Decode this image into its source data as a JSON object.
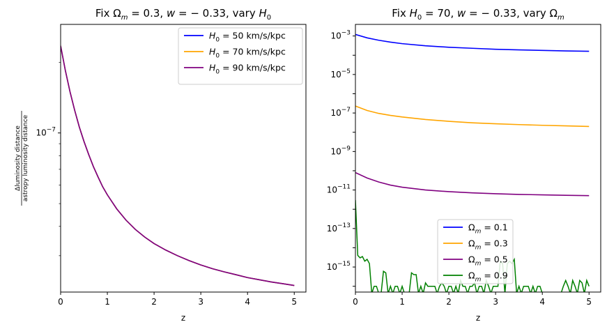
{
  "chart_data": [
    {
      "type": "line",
      "title_parts": {
        "a": "Fix ",
        "sym": "Ω",
        "sub": "m",
        "b": " = 0.3, ",
        "w": "w",
        "c": " = − 0.33, vary ",
        "h": "H",
        "hsub": "0"
      },
      "xlabel": "z",
      "ylabel": {
        "numerator": "Δluminosity distance",
        "denominator": "astropy luminosity distance"
      },
      "yscale": "log",
      "xlim": [
        0,
        5.25
      ],
      "ylim": [
        2.1e-08,
        2.9e-07
      ],
      "xticks": [
        0,
        1,
        2,
        3,
        4,
        5
      ],
      "xtick_labels": [
        "0",
        "1",
        "2",
        "3",
        "4",
        "5"
      ],
      "ytick_labels": [
        {
          "base": "10",
          "exp": "−7"
        }
      ],
      "legend_loc": "upper right",
      "legend": [
        {
          "prefix": "H",
          "sub": "0",
          "label": " = 50 km/s/kpc",
          "color": "#0000ff"
        },
        {
          "prefix": "H",
          "sub": "0",
          "label": " = 70 km/s/kpc",
          "color": "#ffa500"
        },
        {
          "prefix": "H",
          "sub": "0",
          "label": " = 90 km/s/kpc",
          "color": "#800080"
        }
      ],
      "x": [
        0,
        0.1,
        0.2,
        0.3,
        0.4,
        0.5,
        0.6,
        0.7,
        0.8,
        0.9,
        1.0,
        1.2,
        1.4,
        1.6,
        1.8,
        2.0,
        2.25,
        2.5,
        2.75,
        3.0,
        3.25,
        3.5,
        3.75,
        4.0,
        4.25,
        4.5,
        4.75,
        5.0
      ],
      "series": [
        {
          "color": "#0000ff",
          "values": [
            2.35e-07,
            1.85e-07,
            1.5e-07,
            1.25e-07,
            1.06e-07,
            9.2e-08,
            8.1e-08,
            7.2e-08,
            6.5e-08,
            5.9e-08,
            5.45e-08,
            4.75e-08,
            4.25e-08,
            3.88e-08,
            3.6e-08,
            3.38e-08,
            3.17e-08,
            3e-08,
            2.86e-08,
            2.74e-08,
            2.64e-08,
            2.56e-08,
            2.49e-08,
            2.42e-08,
            2.37e-08,
            2.32e-08,
            2.28e-08,
            2.24e-08
          ]
        },
        {
          "color": "#ffa500",
          "values": [
            2.35e-07,
            1.85e-07,
            1.5e-07,
            1.25e-07,
            1.06e-07,
            9.2e-08,
            8.1e-08,
            7.2e-08,
            6.5e-08,
            5.9e-08,
            5.45e-08,
            4.75e-08,
            4.25e-08,
            3.88e-08,
            3.6e-08,
            3.38e-08,
            3.17e-08,
            3e-08,
            2.86e-08,
            2.74e-08,
            2.64e-08,
            2.56e-08,
            2.49e-08,
            2.42e-08,
            2.37e-08,
            2.32e-08,
            2.28e-08,
            2.24e-08
          ]
        },
        {
          "color": "#800080",
          "values": [
            2.35e-07,
            1.85e-07,
            1.5e-07,
            1.25e-07,
            1.06e-07,
            9.2e-08,
            8.1e-08,
            7.2e-08,
            6.5e-08,
            5.9e-08,
            5.45e-08,
            4.75e-08,
            4.25e-08,
            3.88e-08,
            3.6e-08,
            3.38e-08,
            3.17e-08,
            3e-08,
            2.86e-08,
            2.74e-08,
            2.64e-08,
            2.56e-08,
            2.49e-08,
            2.42e-08,
            2.37e-08,
            2.32e-08,
            2.28e-08,
            2.24e-08
          ]
        }
      ]
    },
    {
      "type": "line",
      "title_parts": {
        "a": "Fix ",
        "h": "H",
        "hsub": "0",
        "b": " = 70, ",
        "w": "w",
        "c": " = − 0.33, vary ",
        "sym": "Ω",
        "sub": "m"
      },
      "xlabel": "z",
      "yscale": "log",
      "xlim": [
        0,
        5.25
      ],
      "ylim": [
        5e-17,
        0.004
      ],
      "xticks": [
        0,
        1,
        2,
        3,
        4,
        5
      ],
      "xtick_labels": [
        "0",
        "1",
        "2",
        "3",
        "4",
        "5"
      ],
      "yticks": [
        0.001,
        1e-05,
        1e-07,
        1e-09,
        1e-11,
        1e-13,
        1e-15
      ],
      "ytick_labels": [
        {
          "base": "10",
          "exp": "−3"
        },
        {
          "base": "10",
          "exp": "−5"
        },
        {
          "base": "10",
          "exp": "−7"
        },
        {
          "base": "10",
          "exp": "−9"
        },
        {
          "base": "10",
          "exp": "−11"
        },
        {
          "base": "10",
          "exp": "−13"
        },
        {
          "base": "10",
          "exp": "−15"
        }
      ],
      "legend_loc": "lower center",
      "legend": [
        {
          "prefix": "Ω",
          "sub": "m",
          "label": " = 0.1",
          "color": "#0000ff"
        },
        {
          "prefix": "Ω",
          "sub": "m",
          "label": " = 0.3",
          "color": "#ffa500"
        },
        {
          "prefix": "Ω",
          "sub": "m",
          "label": " = 0.5",
          "color": "#800080"
        },
        {
          "prefix": "Ω",
          "sub": "m",
          "label": " = 0.9",
          "color": "#008000"
        }
      ],
      "x": [
        0,
        0.25,
        0.5,
        0.75,
        1.0,
        1.5,
        2.0,
        2.5,
        3.0,
        3.5,
        4.0,
        4.5,
        5.0
      ],
      "series": [
        {
          "color": "#0000ff",
          "values": [
            0.0012,
            0.0008,
            0.0006,
            0.00048,
            0.0004,
            0.00031,
            0.00026,
            0.00023,
            0.000205,
            0.00019,
            0.000178,
            0.000168,
            0.00016
          ]
        },
        {
          "color": "#ffa500",
          "values": [
            2.3e-07,
            1.35e-07,
            9.5e-08,
            7.5e-08,
            6.2e-08,
            4.6e-08,
            3.7e-08,
            3.1e-08,
            2.75e-08,
            2.5e-08,
            2.3e-08,
            2.15e-08,
            2e-08
          ]
        },
        {
          "color": "#800080",
          "values": [
            8e-11,
            4.2e-11,
            2.6e-11,
            1.8e-11,
            1.4e-11,
            1e-11,
            8.2e-12,
            7.1e-12,
            6.4e-12,
            5.9e-12,
            5.6e-12,
            5.3e-12,
            5.1e-12
          ]
        }
      ],
      "noisy_series": {
        "color": "#008000",
        "x": [
          0,
          0.05,
          0.1,
          0.15,
          0.2,
          0.25,
          0.3,
          0.35,
          0.4,
          0.45,
          0.5,
          0.55,
          0.6,
          0.65,
          0.7,
          0.75,
          0.8,
          0.85,
          0.9,
          0.95,
          1.0,
          1.05,
          1.1,
          1.15,
          1.2,
          1.25,
          1.3,
          1.35,
          1.4,
          1.45,
          1.5,
          1.55,
          1.6,
          1.65,
          1.7,
          1.75,
          1.8,
          1.85,
          1.9,
          1.95,
          2.0,
          2.05,
          2.1,
          2.15,
          2.2,
          2.25,
          2.3,
          2.35,
          2.4,
          2.45,
          2.5,
          2.55,
          2.6,
          2.65,
          2.7,
          2.75,
          2.8,
          2.85,
          2.9,
          2.95,
          3.0,
          3.05,
          3.1,
          3.15,
          3.2,
          3.25,
          3.3,
          3.35,
          3.4,
          3.45,
          3.5,
          3.55,
          3.6,
          3.65,
          3.7,
          3.75,
          3.8,
          3.85,
          3.9,
          3.95,
          4.0,
          4.05,
          4.1,
          4.15,
          4.2,
          4.25,
          4.3,
          4.35,
          4.4,
          4.45,
          4.5,
          4.55,
          4.6,
          4.65,
          4.7,
          4.75,
          4.8,
          4.85,
          4.9,
          4.95,
          5.0
        ],
        "values": [
          3e-12,
          4e-15,
          3e-15,
          3.5e-15,
          2e-15,
          2.5e-15,
          1.5e-15,
          0,
          1e-16,
          1e-16,
          0,
          0,
          6e-16,
          5e-16,
          0,
          1e-16,
          0,
          1e-16,
          1e-16,
          0,
          1e-16,
          0,
          0,
          0,
          5e-16,
          4e-16,
          4e-16,
          0,
          1e-16,
          0,
          1.5e-16,
          1e-16,
          1e-16,
          1e-16,
          1e-16,
          0,
          1e-16,
          1.5e-16,
          1e-16,
          0,
          1e-16,
          1e-16,
          0,
          1e-16,
          0,
          2e-16,
          1e-16,
          1e-16,
          0,
          1e-16,
          1e-16,
          1.5e-16,
          0,
          1e-16,
          1e-16,
          0,
          2e-16,
          1e-16,
          0,
          1e-16,
          1e-16,
          1e-16,
          2e-15,
          1.5e-15,
          0,
          1.5e-15,
          2e-15,
          1.5e-15,
          2.5e-15,
          0,
          1e-16,
          0,
          1e-16,
          1e-16,
          1e-16,
          0,
          1e-16,
          0,
          1e-16,
          1e-16,
          0,
          0,
          0,
          0,
          0,
          0,
          0,
          0,
          0,
          1e-16,
          2e-16,
          1e-16,
          0,
          2e-16,
          1e-16,
          0,
          2e-16,
          1.5e-16,
          0,
          2e-16,
          1e-16
        ]
      }
    }
  ]
}
